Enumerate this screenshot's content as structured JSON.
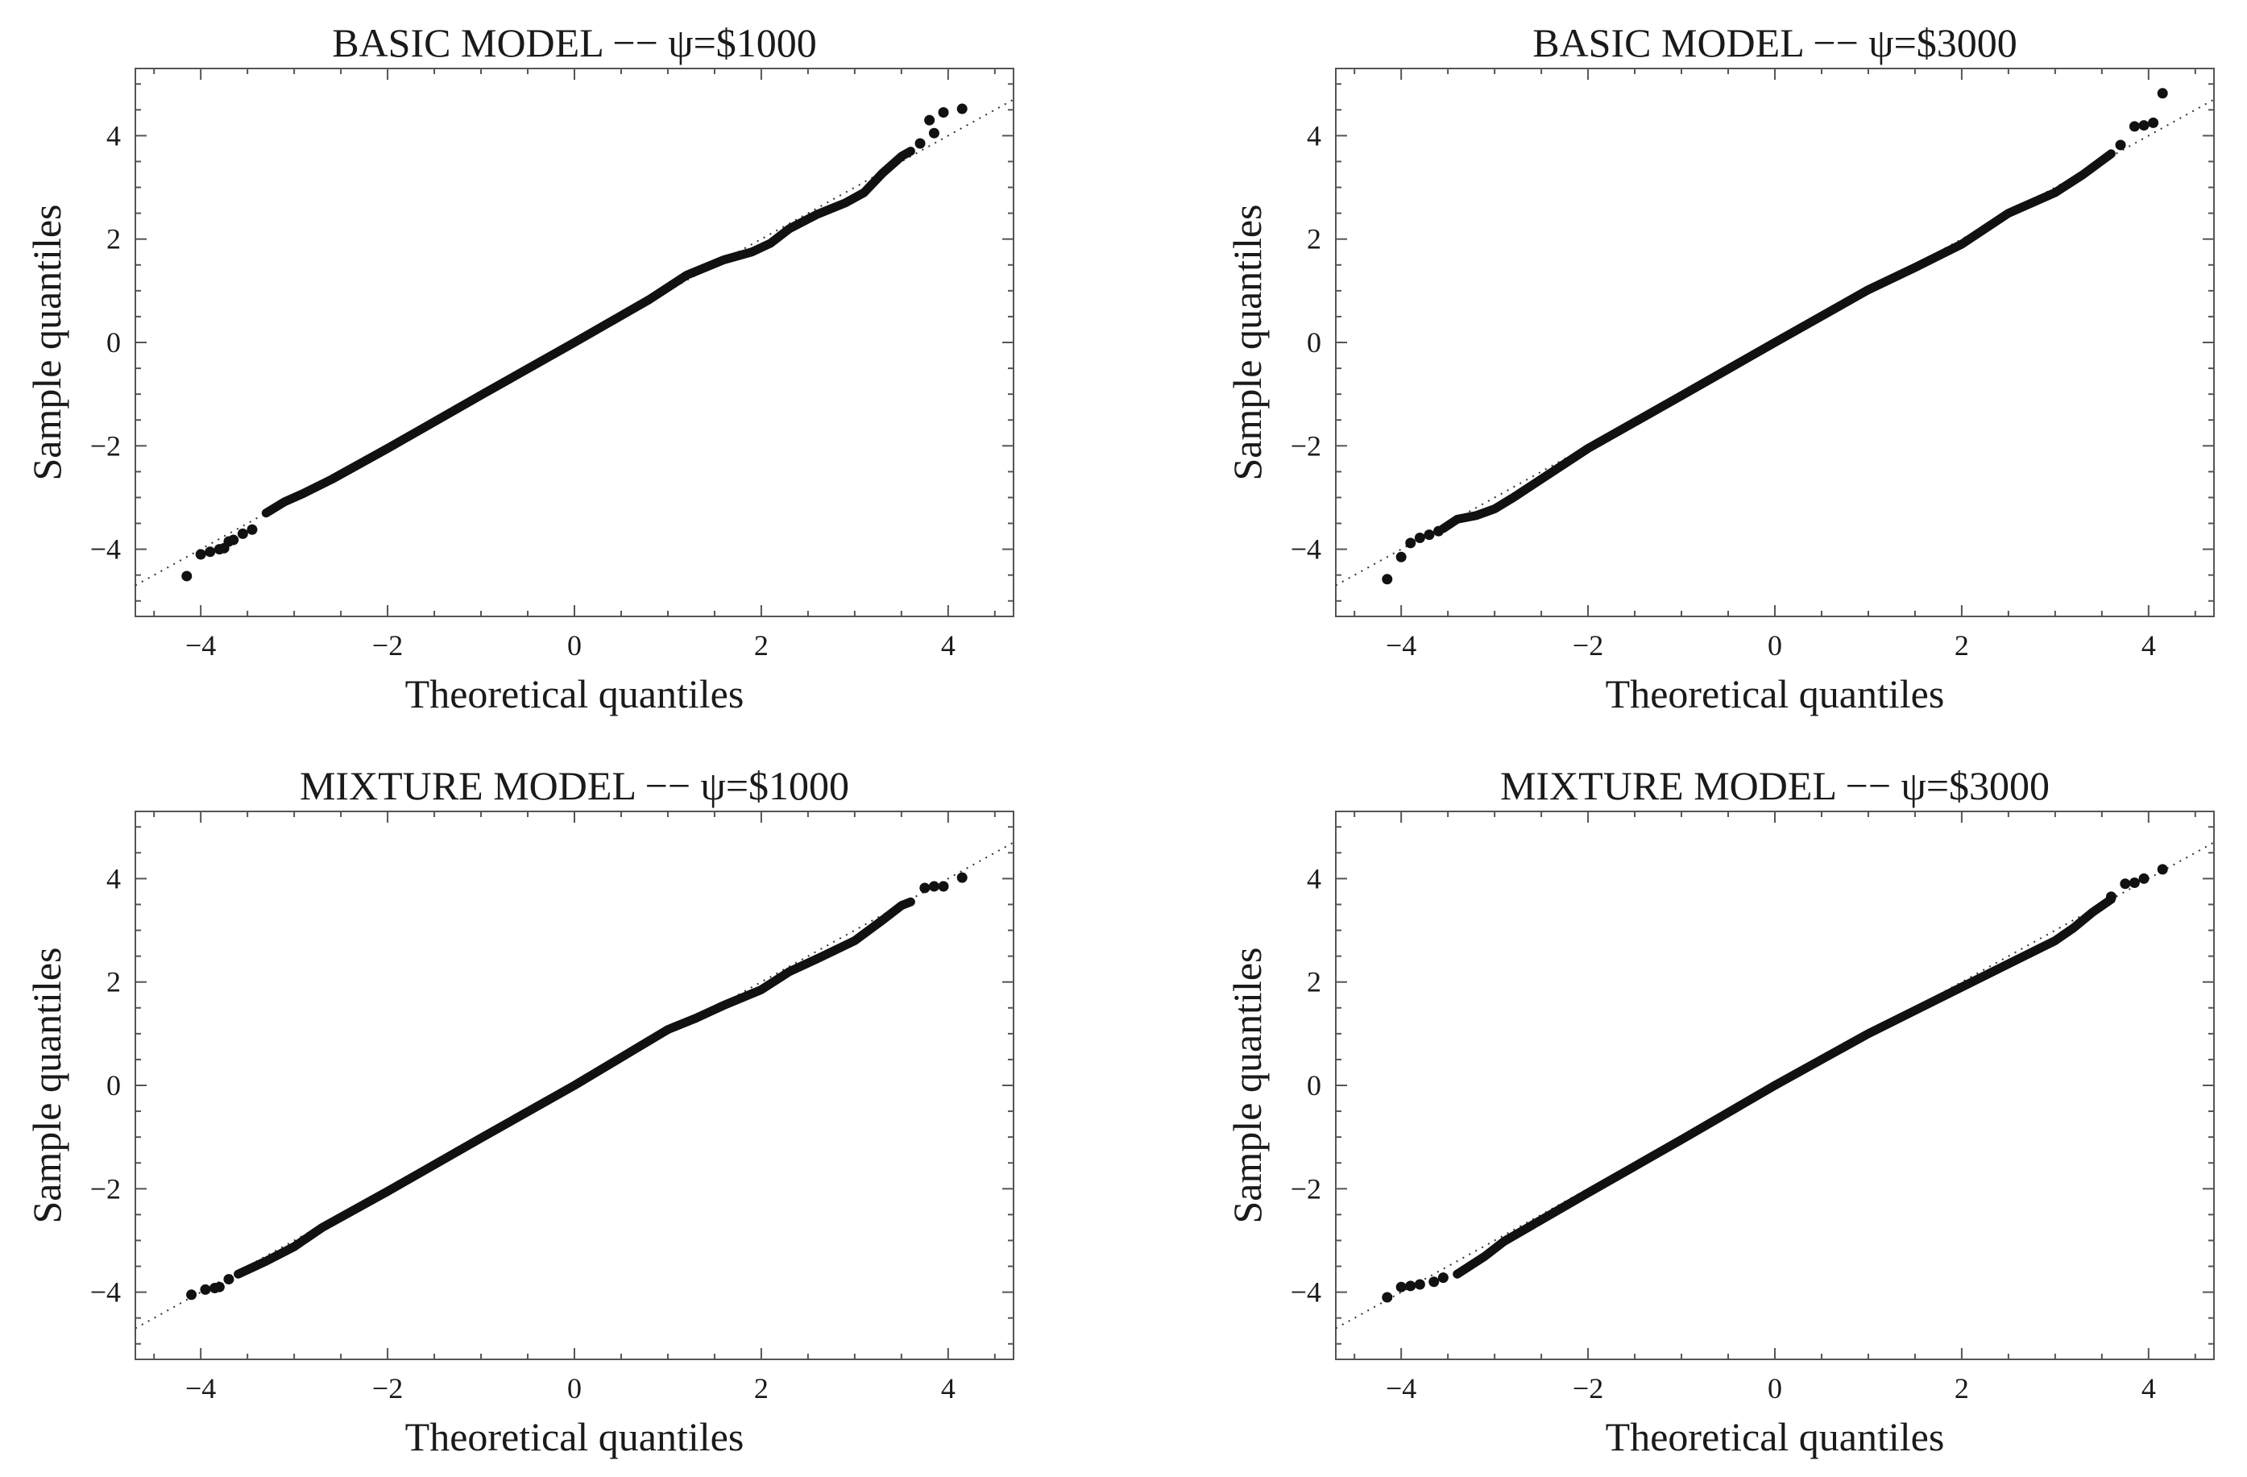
{
  "chart_data": [
    {
      "type": "scatter",
      "title": "BASIC MODEL −− ψ=$1000",
      "xlabel": "Theoretical quantiles",
      "ylabel": "Sample quantiles",
      "xlim": [
        -4.7,
        4.7
      ],
      "ylim": [
        -5.3,
        5.3
      ],
      "xticks": [
        -4,
        -2,
        0,
        2,
        4
      ],
      "yticks": [
        -4,
        -2,
        0,
        2,
        4
      ],
      "tick_labels": [
        "−4",
        "−2",
        "0",
        "2",
        "4"
      ],
      "grid": false,
      "reference_line": [
        [
          -4.7,
          -4.7
        ],
        [
          4.7,
          4.7
        ]
      ],
      "curve": [
        [
          -3.3,
          -3.3
        ],
        [
          -3.1,
          -3.08
        ],
        [
          -2.9,
          -2.92
        ],
        [
          -2.6,
          -2.65
        ],
        [
          -2.0,
          -2.05
        ],
        [
          -1.0,
          -1.02
        ],
        [
          0,
          0
        ],
        [
          0.8,
          0.83
        ],
        [
          1.2,
          1.3
        ],
        [
          1.6,
          1.6
        ],
        [
          1.9,
          1.75
        ],
        [
          2.1,
          1.92
        ],
        [
          2.3,
          2.2
        ],
        [
          2.6,
          2.48
        ],
        [
          2.9,
          2.7
        ],
        [
          3.1,
          2.9
        ],
        [
          3.3,
          3.28
        ],
        [
          3.5,
          3.6
        ],
        [
          3.6,
          3.7
        ]
      ],
      "points": [
        [
          -4.15,
          -4.52
        ],
        [
          -4.0,
          -4.1
        ],
        [
          -3.9,
          -4.05
        ],
        [
          -3.8,
          -4.0
        ],
        [
          -3.75,
          -3.98
        ],
        [
          -3.65,
          -3.82
        ],
        [
          -3.55,
          -3.7
        ],
        [
          -3.45,
          -3.62
        ],
        [
          -3.7,
          -3.85
        ],
        [
          3.7,
          3.85
        ],
        [
          3.8,
          4.3
        ],
        [
          3.85,
          4.05
        ],
        [
          3.95,
          4.45
        ],
        [
          4.15,
          4.52
        ]
      ]
    },
    {
      "type": "scatter",
      "title": "BASIC MODEL −− ψ=$3000",
      "xlabel": "Theoretical quantiles",
      "ylabel": "Sample quantiles",
      "xlim": [
        -4.7,
        4.7
      ],
      "ylim": [
        -5.3,
        5.3
      ],
      "xticks": [
        -4,
        -2,
        0,
        2,
        4
      ],
      "yticks": [
        -4,
        -2,
        0,
        2,
        4
      ],
      "tick_labels": [
        "−4",
        "−2",
        "0",
        "2",
        "4"
      ],
      "grid": false,
      "reference_line": [
        [
          -4.7,
          -4.7
        ],
        [
          4.7,
          4.7
        ]
      ],
      "curve": [
        [
          -3.55,
          -3.6
        ],
        [
          -3.4,
          -3.42
        ],
        [
          -3.2,
          -3.35
        ],
        [
          -3.0,
          -3.22
        ],
        [
          -2.8,
          -3.0
        ],
        [
          -2.0,
          -2.05
        ],
        [
          -1.0,
          -1.03
        ],
        [
          0,
          0
        ],
        [
          1.0,
          1.02
        ],
        [
          1.5,
          1.45
        ],
        [
          2.0,
          1.9
        ],
        [
          2.5,
          2.5
        ],
        [
          3.0,
          2.9
        ],
        [
          3.3,
          3.25
        ],
        [
          3.6,
          3.65
        ]
      ],
      "points": [
        [
          -4.15,
          -4.58
        ],
        [
          -4.0,
          -4.15
        ],
        [
          -3.9,
          -3.88
        ],
        [
          -3.8,
          -3.78
        ],
        [
          -3.7,
          -3.72
        ],
        [
          -3.6,
          -3.65
        ],
        [
          3.7,
          3.82
        ],
        [
          3.85,
          4.18
        ],
        [
          3.95,
          4.2
        ],
        [
          4.05,
          4.25
        ],
        [
          4.15,
          4.82
        ]
      ]
    },
    {
      "type": "scatter",
      "title": "MIXTURE MODEL −− ψ=$1000",
      "xlabel": "Theoretical quantiles",
      "ylabel": "Sample quantiles",
      "xlim": [
        -4.7,
        4.7
      ],
      "ylim": [
        -5.3,
        5.3
      ],
      "xticks": [
        -4,
        -2,
        0,
        2,
        4
      ],
      "yticks": [
        -4,
        -2,
        0,
        2,
        4
      ],
      "tick_labels": [
        "−4",
        "−2",
        "0",
        "2",
        "4"
      ],
      "grid": false,
      "reference_line": [
        [
          -4.7,
          -4.7
        ],
        [
          4.7,
          4.7
        ]
      ],
      "curve": [
        [
          -3.6,
          -3.65
        ],
        [
          -3.3,
          -3.4
        ],
        [
          -3.0,
          -3.12
        ],
        [
          -2.7,
          -2.75
        ],
        [
          -2.0,
          -2.05
        ],
        [
          -1.0,
          -1.02
        ],
        [
          0,
          0
        ],
        [
          1.0,
          1.08
        ],
        [
          1.3,
          1.3
        ],
        [
          1.6,
          1.55
        ],
        [
          2.0,
          1.85
        ],
        [
          2.3,
          2.2
        ],
        [
          2.6,
          2.45
        ],
        [
          3.0,
          2.8
        ],
        [
          3.3,
          3.2
        ],
        [
          3.5,
          3.48
        ],
        [
          3.6,
          3.55
        ]
      ],
      "points": [
        [
          -4.1,
          -4.05
        ],
        [
          -3.95,
          -3.95
        ],
        [
          -3.85,
          -3.92
        ],
        [
          -3.8,
          -3.9
        ],
        [
          -3.7,
          -3.75
        ],
        [
          3.75,
          3.82
        ],
        [
          3.85,
          3.85
        ],
        [
          3.95,
          3.85
        ],
        [
          4.15,
          4.02
        ]
      ]
    },
    {
      "type": "scatter",
      "title": "MIXTURE MODEL −− ψ=$3000",
      "xlabel": "Theoretical quantiles",
      "ylabel": "Sample quantiles",
      "xlim": [
        -4.7,
        4.7
      ],
      "ylim": [
        -5.3,
        5.3
      ],
      "xticks": [
        -4,
        -2,
        0,
        2,
        4
      ],
      "yticks": [
        -4,
        -2,
        0,
        2,
        4
      ],
      "tick_labels": [
        "−4",
        "−2",
        "0",
        "2",
        "4"
      ],
      "grid": false,
      "reference_line": [
        [
          -4.7,
          -4.7
        ],
        [
          4.7,
          4.7
        ]
      ],
      "curve": [
        [
          -3.4,
          -3.65
        ],
        [
          -3.1,
          -3.3
        ],
        [
          -2.9,
          -3.02
        ],
        [
          -2.0,
          -2.08
        ],
        [
          -1.0,
          -1.05
        ],
        [
          0,
          0
        ],
        [
          1.0,
          1.0
        ],
        [
          1.5,
          1.45
        ],
        [
          2.0,
          1.9
        ],
        [
          2.5,
          2.35
        ],
        [
          3.0,
          2.8
        ],
        [
          3.2,
          3.05
        ],
        [
          3.4,
          3.35
        ],
        [
          3.6,
          3.6
        ]
      ],
      "points": [
        [
          -4.15,
          -4.1
        ],
        [
          -4.0,
          -3.9
        ],
        [
          -3.9,
          -3.88
        ],
        [
          -3.8,
          -3.85
        ],
        [
          -3.65,
          -3.8
        ],
        [
          -3.55,
          -3.72
        ],
        [
          3.6,
          3.65
        ],
        [
          3.75,
          3.9
        ],
        [
          3.85,
          3.92
        ],
        [
          3.95,
          4.0
        ],
        [
          4.15,
          4.18
        ]
      ]
    }
  ]
}
